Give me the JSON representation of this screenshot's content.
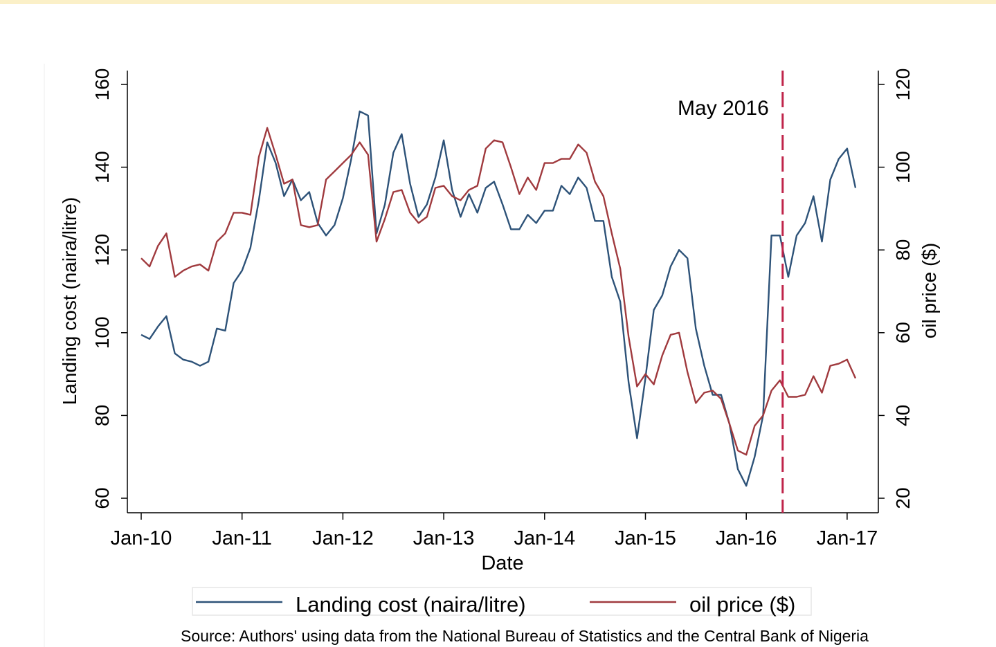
{
  "chart_data": {
    "type": "line",
    "xlabel": "Date",
    "ylabel_left": "Landing cost (naira/litre)",
    "ylabel_right": "oil price ($)",
    "ylim_left": [
      60,
      160
    ],
    "ylim_right": [
      20,
      120
    ],
    "yticks_left": [
      60,
      80,
      100,
      120,
      140,
      160
    ],
    "yticks_right": [
      20,
      40,
      60,
      80,
      100,
      120
    ],
    "xticks": [
      "Jan-10",
      "Jan-11",
      "Jan-12",
      "Jan-13",
      "Jan-14",
      "Jan-15",
      "Jan-16",
      "Jan-17"
    ],
    "x_start_year": 2010,
    "annotation": {
      "label": "May 2016",
      "month_index": 76,
      "color": "#c0244a"
    },
    "series": [
      {
        "name": "Landing cost (naira/litre)",
        "axis": "left",
        "color": "#2d5278",
        "values": [
          99.5,
          98.5,
          101.5,
          104,
          95,
          93.5,
          93,
          92,
          93,
          101,
          100.5,
          112,
          115,
          120.5,
          132,
          146,
          141,
          133,
          137,
          132,
          134,
          126.5,
          123.5,
          126,
          132.5,
          142,
          153.5,
          152.5,
          124,
          131,
          143.5,
          148,
          136,
          128,
          131,
          137.5,
          146.5,
          134.5,
          128,
          133.5,
          129,
          135,
          136.5,
          131,
          125,
          125,
          128.5,
          126.5,
          129.5,
          129.5,
          135.5,
          133.5,
          137.5,
          135,
          127,
          127,
          113.5,
          107.5,
          88,
          74.5,
          89,
          105.5,
          109,
          116,
          120,
          118,
          101,
          92,
          85,
          85,
          78,
          67,
          63,
          70,
          80,
          123.5,
          123.5,
          113.5,
          123.5,
          126.5,
          133,
          122,
          137,
          142,
          144.5,
          135
        ]
      },
      {
        "name": "oil price ($)",
        "axis": "right",
        "color": "#a03a3e",
        "values": [
          78,
          76,
          81,
          84,
          73.5,
          75,
          76,
          76.5,
          75,
          82,
          84,
          89,
          89,
          88.5,
          102.5,
          109.5,
          103,
          96,
          97,
          86,
          85.5,
          86,
          97,
          99,
          101,
          103,
          106,
          103,
          82,
          87.5,
          94,
          94.5,
          89,
          86.5,
          88,
          95,
          95.5,
          93,
          92,
          94.5,
          95.5,
          104.5,
          106.5,
          106,
          100,
          93.5,
          97.5,
          94.5,
          101,
          101,
          102,
          102,
          105.5,
          103.5,
          96.5,
          93,
          84,
          75.5,
          59,
          47,
          50,
          47.5,
          54.5,
          59.5,
          60,
          50.5,
          43,
          45.5,
          46,
          44,
          38,
          31.5,
          30.5,
          37.5,
          40,
          46,
          48.5,
          44.5,
          44.5,
          45,
          49.5,
          45.5,
          52,
          52.5,
          53.5,
          49
        ]
      }
    ],
    "legend": {
      "position": "bottom"
    },
    "source": "Source: Authors' using data from the National Bureau of Statistics and the Central Bank of Nigeria"
  }
}
